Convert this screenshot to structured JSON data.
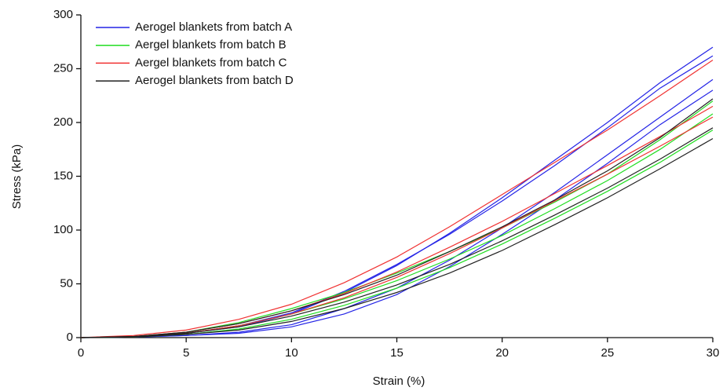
{
  "chart_data": {
    "type": "line",
    "x_label": "Strain (%)",
    "y_label": "Stress (kPa)",
    "x": [
      0,
      2.5,
      5,
      7.5,
      10,
      12.5,
      15,
      17.5,
      20,
      22.5,
      25,
      27.5,
      30
    ],
    "xlim": [
      0,
      30
    ],
    "xticks": [
      0,
      5,
      10,
      15,
      20,
      25,
      30
    ],
    "ylim": [
      0,
      300
    ],
    "yticks": [
      0,
      50,
      100,
      150,
      200,
      250,
      300
    ],
    "legend": "upper left",
    "series": [
      {
        "name": "Aerogel blankets from batch A",
        "color": "#2424e6",
        "curves": [
          [
            0,
            1,
            4,
            10,
            22,
            42,
            67,
            97,
            130,
            165,
            200,
            237,
            270
          ],
          [
            0,
            1,
            4,
            11,
            23,
            43,
            68,
            96,
            127,
            160,
            195,
            232,
            262
          ],
          [
            0,
            0.5,
            2,
            5,
            12,
            27,
            46,
            72,
            102,
            135,
            170,
            205,
            240
          ],
          [
            0,
            0.5,
            2,
            4,
            10,
            22,
            40,
            66,
            96,
            128,
            162,
            198,
            230
          ]
        ]
      },
      {
        "name": "Aergel blankets from batch B",
        "color": "#22dd22",
        "curves": [
          [
            0,
            1,
            5,
            14,
            27,
            42,
            60,
            80,
            102,
            126,
            152,
            184,
            220
          ],
          [
            0,
            1,
            4,
            11,
            22,
            36,
            53,
            73,
            95,
            120,
            146,
            175,
            208
          ],
          [
            0,
            0.5,
            3,
            8,
            17,
            30,
            46,
            65,
            87,
            111,
            136,
            163,
            193
          ]
        ]
      },
      {
        "name": "Aergel blankets from batch C",
        "color": "#f03232",
        "curves": [
          [
            0,
            2,
            7,
            17,
            31,
            51,
            75,
            103,
            133,
            163,
            193,
            225,
            258
          ],
          [
            0,
            1,
            5,
            13,
            25,
            41,
            61,
            84,
            108,
            134,
            160,
            187,
            215
          ],
          [
            0,
            1,
            4,
            11,
            22,
            37,
            56,
            78,
            102,
            127,
            152,
            178,
            205
          ]
        ]
      },
      {
        "name": "Aerogel blankets from batch D",
        "color": "#222222",
        "curves": [
          [
            0,
            1,
            5,
            13,
            25,
            40,
            58,
            80,
            103,
            128,
            155,
            186,
            222
          ],
          [
            0,
            1,
            4,
            10,
            20,
            33,
            49,
            68,
            90,
            114,
            139,
            166,
            195
          ],
          [
            0,
            0.5,
            3,
            7,
            15,
            27,
            42,
            60,
            81,
            105,
            130,
            157,
            185
          ]
        ]
      }
    ]
  }
}
